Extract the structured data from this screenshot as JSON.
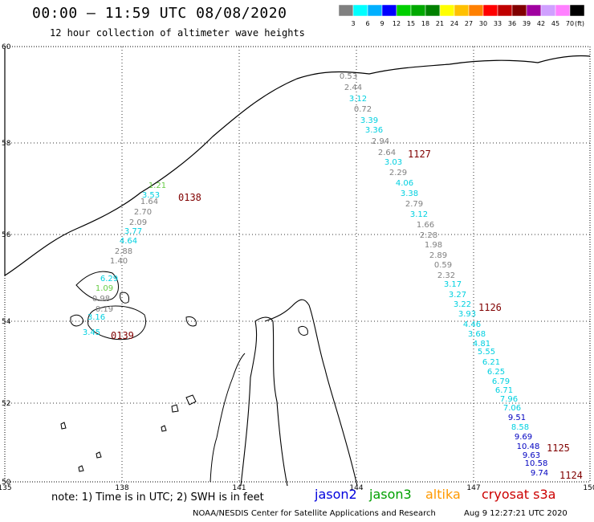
{
  "header": {
    "title": "00:00 – 11:59 UTC 08/08/2020",
    "subtitle": "12 hour collection of altimeter wave heights"
  },
  "colorbar": {
    "labels": [
      "3",
      "6",
      "9",
      "12",
      "15",
      "18",
      "21",
      "24",
      "27",
      "30",
      "33",
      "36",
      "39",
      "42",
      "45",
      "70"
    ],
    "unit": "(ft)",
    "colors": [
      "#808080",
      "#00ffff",
      "#00b0ff",
      "#0000ff",
      "#00d000",
      "#00a800",
      "#008000",
      "#ffff00",
      "#ffc000",
      "#ff8000",
      "#ff0000",
      "#c00000",
      "#800000",
      "#a000a0",
      "#d0a0ff",
      "#ff80ff",
      "#000000"
    ]
  },
  "map": {
    "lon_labels": [
      "135",
      "138",
      "141",
      "144",
      "147",
      "150"
    ],
    "lat_labels": [
      "60",
      "58",
      "56",
      "54",
      "52",
      "50"
    ]
  },
  "passes": [
    {
      "label": "0138",
      "color": "#800000"
    },
    {
      "label": "0139",
      "color": "#800000"
    },
    {
      "label": "1127",
      "color": "#800000"
    },
    {
      "label": "1126",
      "color": "#800000"
    },
    {
      "label": "1125",
      "color": "#800000"
    },
    {
      "label": "1124",
      "color": "#800000"
    }
  ],
  "track_west": [
    {
      "v": "1.21",
      "c": "#66cc44"
    },
    {
      "v": "3.53",
      "c": "#00d0e0"
    },
    {
      "v": "1.64",
      "c": "#808080"
    },
    {
      "v": "2.70",
      "c": "#808080"
    },
    {
      "v": "2.09",
      "c": "#808080"
    },
    {
      "v": "3.77",
      "c": "#00d0e0"
    },
    {
      "v": "4.64",
      "c": "#00d0e0"
    },
    {
      "v": "2.88",
      "c": "#808080"
    },
    {
      "v": "1.40",
      "c": "#808080"
    },
    {
      "v": "6.29",
      "c": "#00d0e0"
    },
    {
      "v": "1.09",
      "c": "#66cc44"
    },
    {
      "v": "0.98",
      "c": "#808080"
    },
    {
      "v": "0.19",
      "c": "#808080"
    },
    {
      "v": "3.16",
      "c": "#00d0e0"
    },
    {
      "v": "3.45",
      "c": "#00d0e0"
    }
  ],
  "track_east": [
    {
      "v": "0.53",
      "c": "#808080"
    },
    {
      "v": "2.44",
      "c": "#808080"
    },
    {
      "v": "3.12",
      "c": "#00d0e0"
    },
    {
      "v": "0.72",
      "c": "#808080"
    },
    {
      "v": "3.39",
      "c": "#00d0e0"
    },
    {
      "v": "3.36",
      "c": "#00d0e0"
    },
    {
      "v": "2.94",
      "c": "#808080"
    },
    {
      "v": "2.64",
      "c": "#808080"
    },
    {
      "v": "3.03",
      "c": "#00d0e0"
    },
    {
      "v": "2.29",
      "c": "#808080"
    },
    {
      "v": "4.06",
      "c": "#00d0e0"
    },
    {
      "v": "3.38",
      "c": "#00d0e0"
    },
    {
      "v": "2.79",
      "c": "#808080"
    },
    {
      "v": "3.12",
      "c": "#00d0e0"
    },
    {
      "v": "1.66",
      "c": "#808080"
    },
    {
      "v": "2.28",
      "c": "#808080"
    },
    {
      "v": "1.98",
      "c": "#808080"
    },
    {
      "v": "2.89",
      "c": "#808080"
    },
    {
      "v": "0.59",
      "c": "#808080"
    },
    {
      "v": "2.32",
      "c": "#808080"
    },
    {
      "v": "3.17",
      "c": "#00d0e0"
    },
    {
      "v": "3.27",
      "c": "#00d0e0"
    },
    {
      "v": "3.22",
      "c": "#00d0e0"
    },
    {
      "v": "3.93",
      "c": "#00d0e0"
    },
    {
      "v": "4.46",
      "c": "#00d0e0"
    },
    {
      "v": "3.68",
      "c": "#00d0e0"
    },
    {
      "v": "4.81",
      "c": "#00d0e0"
    },
    {
      "v": "5.55",
      "c": "#00d0e0"
    },
    {
      "v": "6.21",
      "c": "#00d0e0"
    },
    {
      "v": "6.25",
      "c": "#00d0e0"
    },
    {
      "v": "6.79",
      "c": "#00d0e0"
    },
    {
      "v": "6.71",
      "c": "#00d0e0"
    },
    {
      "v": "7.96",
      "c": "#00d0e0"
    },
    {
      "v": "7.06",
      "c": "#00d0e0"
    },
    {
      "v": "9.51",
      "c": "#0000c0"
    },
    {
      "v": "8.58",
      "c": "#00d0e0"
    },
    {
      "v": "9.69",
      "c": "#0000c0"
    },
    {
      "v": "10.48",
      "c": "#0000c0"
    },
    {
      "v": "9.63",
      "c": "#0000c0"
    },
    {
      "v": "10.58",
      "c": "#0000c0"
    },
    {
      "v": "9.74",
      "c": "#0000c0"
    }
  ],
  "footer": {
    "note": "note: 1) Time is in UTC; 2) SWH is in feet",
    "satellites": [
      {
        "name": "jason2",
        "color": "#0000dd"
      },
      {
        "name": "jason3",
        "color": "#00a000"
      },
      {
        "name": "altika",
        "color": "#ff9900"
      },
      {
        "name": "cryosat s3a",
        "color": "#cc0000"
      }
    ],
    "credit": "NOAA/NESDIS Center for Satellite Applications and Research",
    "timestamp": "Aug  9 12:27:21 UTC 2020"
  }
}
